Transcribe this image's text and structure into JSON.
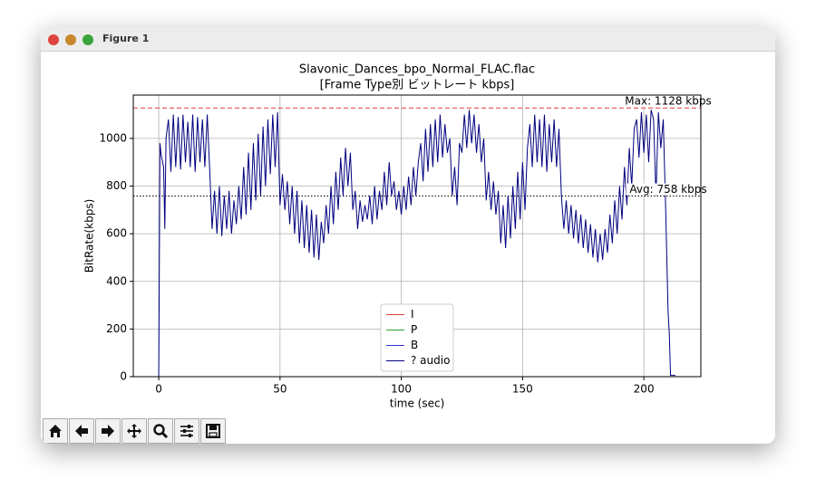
{
  "window": {
    "title": "Figure 1"
  },
  "chart_data": {
    "type": "line",
    "title": "Slavonic_Dances_bpo_Normal_FLAC.flac",
    "subtitle": "[Frame Type別 ビットレート kbps]",
    "xlabel": "time (sec)",
    "ylabel": "BitRate(kbps)",
    "xlim": [
      -10.5,
      223.5
    ],
    "ylim": [
      0,
      1182
    ],
    "xticks": [
      0,
      50,
      100,
      150,
      200
    ],
    "yticks": [
      0,
      200,
      400,
      600,
      800,
      1000
    ],
    "grid": true,
    "legend": "lower center",
    "hlines": [
      {
        "value": 1128,
        "color": "#e03c3c",
        "style": "dashed",
        "label": "Max: 1128 kbps"
      },
      {
        "value": 758,
        "color": "#000000",
        "style": "dotted",
        "label": "Avg: 758 kbps"
      }
    ],
    "series": [
      {
        "name": "I",
        "color": "#e03c3c",
        "x": [],
        "values": []
      },
      {
        "name": "P",
        "color": "#2ca02c",
        "x": [],
        "values": []
      },
      {
        "name": "B",
        "color": "#3232d2",
        "x": [],
        "values": []
      },
      {
        "name": "? audio",
        "color": "#00007f",
        "x": [
          0,
          0.5,
          1,
          2,
          2.5,
          3,
          4,
          5,
          6,
          7,
          8,
          9,
          10,
          11,
          12,
          13,
          14,
          15,
          16,
          17,
          18,
          19,
          20,
          21,
          22,
          23,
          24,
          25,
          26,
          27,
          28,
          29,
          30,
          31,
          32,
          33,
          34,
          35,
          36,
          37,
          38,
          39,
          40,
          41,
          42,
          43,
          44,
          45,
          46,
          47,
          48,
          49,
          50,
          51,
          52,
          53,
          54,
          55,
          56,
          57,
          58,
          59,
          60,
          61,
          62,
          63,
          64,
          65,
          66,
          67,
          68,
          69,
          70,
          71,
          72,
          73,
          74,
          75,
          76,
          77,
          78,
          79,
          80,
          81,
          82,
          83,
          84,
          85,
          86,
          87,
          88,
          89,
          90,
          91,
          92,
          93,
          94,
          95,
          96,
          97,
          98,
          99,
          100,
          101,
          102,
          103,
          104,
          105,
          106,
          107,
          108,
          109,
          110,
          111,
          112,
          113,
          114,
          115,
          116,
          117,
          118,
          119,
          120,
          121,
          122,
          123,
          124,
          125,
          126,
          127,
          128,
          129,
          130,
          131,
          132,
          133,
          134,
          135,
          136,
          137,
          138,
          139,
          140,
          141,
          142,
          143,
          144,
          145,
          146,
          147,
          148,
          149,
          150,
          151,
          152,
          153,
          154,
          155,
          156,
          157,
          158,
          159,
          160,
          161,
          162,
          163,
          164,
          165,
          166,
          167,
          168,
          169,
          170,
          171,
          172,
          173,
          174,
          175,
          176,
          177,
          178,
          179,
          180,
          181,
          182,
          183,
          184,
          185,
          186,
          187,
          188,
          189,
          190,
          191,
          192,
          193,
          194,
          195,
          196,
          197,
          198,
          199,
          200,
          201,
          202,
          203,
          204,
          205,
          206,
          207,
          208,
          209,
          210,
          210.5,
          211,
          213
        ],
        "values": [
          0,
          980,
          930,
          880,
          620,
          1000,
          1080,
          860,
          1100,
          880,
          1090,
          870,
          1100,
          900,
          1070,
          880,
          1100,
          860,
          1090,
          900,
          1080,
          880,
          1100,
          870,
          620,
          780,
          600,
          800,
          590,
          760,
          620,
          780,
          600,
          740,
          640,
          800,
          660,
          880,
          680,
          940,
          700,
          980,
          740,
          1020,
          760,
          1050,
          800,
          1080,
          850,
          1100,
          880,
          1110,
          720,
          850,
          700,
          820,
          640,
          800,
          600,
          780,
          560,
          740,
          540,
          720,
          520,
          700,
          500,
          680,
          490,
          650,
          560,
          720,
          600,
          800,
          640,
          860,
          700,
          920,
          760,
          960,
          800,
          940,
          700,
          780,
          620,
          740,
          650,
          720,
          660,
          760,
          640,
          800,
          660,
          780,
          700,
          860,
          720,
          900,
          760,
          820,
          700,
          780,
          680,
          800,
          700,
          840,
          720,
          880,
          760,
          900,
          980,
          820,
          1040,
          860,
          1060,
          880,
          1080,
          900,
          1100,
          920,
          1060,
          940,
          1000,
          760,
          880,
          720,
          980,
          940,
          1100,
          960,
          1120,
          980,
          1100,
          940,
          1060,
          900,
          1000,
          740,
          860,
          700,
          820,
          680,
          780,
          560,
          720,
          540,
          760,
          580,
          800,
          620,
          860,
          660,
          900,
          700,
          960,
          1060,
          880,
          1100,
          900,
          1080,
          880,
          1100,
          860,
          1060,
          900,
          1080,
          880,
          1040,
          760,
          620,
          740,
          600,
          720,
          580,
          700,
          560,
          680,
          540,
          660,
          520,
          640,
          500,
          620,
          480,
          600,
          490,
          620,
          520,
          680,
          560,
          740,
          600,
          800,
          660,
          880,
          720,
          960,
          800,
          1040,
          1080,
          920,
          1110,
          940,
          1100,
          900,
          1120,
          1080,
          760,
          1110,
          960,
          1080,
          700,
          270,
          180,
          5,
          5
        ]
      }
    ]
  }
}
